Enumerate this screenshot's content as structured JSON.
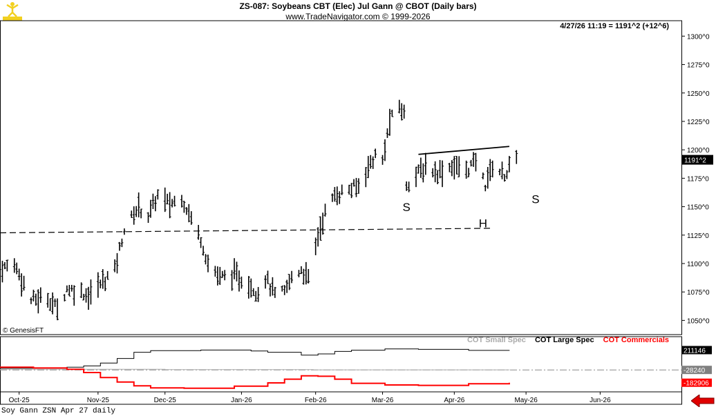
{
  "header": {
    "title": "ZS-087:  Soybeans CBT (Elec) Jul Gann @ CBOT  (Daily bars)",
    "subtitle": "www.TradeNavigator.com © 1999-2026",
    "quote": "4/27/26 11:19 = 1191^2 (+12^6)",
    "credit": "© GenesisFT"
  },
  "footer": {
    "text": "Soy Gann ZSN Apr 27 daily"
  },
  "icons": {
    "logo": "trader-figure-icon",
    "nav": "back-arrow-icon"
  },
  "colors": {
    "price": "#000000",
    "small_spec": "#aaaaaa",
    "large_spec": "#000000",
    "commercials": "#ff0000",
    "accent": "#e00000"
  },
  "legend": [
    {
      "label": "COT Small Spec",
      "color": "#aaaaaa"
    },
    {
      "label": "COT Large Spec",
      "color": "#000000"
    },
    {
      "label": "COT Commercials",
      "color": "#ff0000"
    }
  ],
  "annotations": [
    {
      "text": "S",
      "date": "2026-03-12",
      "price": 1146
    },
    {
      "text": "H",
      "date": "2026-04-13",
      "price": 1132
    },
    {
      "text": "S",
      "date": "2026-05-05",
      "price": 1153
    }
  ],
  "chart_data": [
    {
      "type": "ohlc",
      "title": "Soybeans CBT (Elec) Jul Gann @ CBOT (Daily bars)",
      "x_type": "date",
      "x_range": [
        "2025-09-23",
        "2026-07-05"
      ],
      "x_ticks": [
        {
          "date": "2025-10-01",
          "label": "Oct-25"
        },
        {
          "date": "2025-11-03",
          "label": "Nov-25"
        },
        {
          "date": "2025-12-01",
          "label": "Dec-25"
        },
        {
          "date": "2026-01-02",
          "label": "Jan-26"
        },
        {
          "date": "2026-02-02",
          "label": "Feb-26"
        },
        {
          "date": "2026-03-02",
          "label": "Mar-26"
        },
        {
          "date": "2026-04-01",
          "label": "Apr-26"
        },
        {
          "date": "2026-05-01",
          "label": "May-26"
        },
        {
          "date": "2026-06-01",
          "label": "Jun-26"
        }
      ],
      "ylim": [
        1037.5,
        1307.5
      ],
      "y_ticks": [
        "1050^0",
        "1075^0",
        "1100^0",
        "1125^0",
        "1150^0",
        "1175^0",
        "1200^0",
        "1225^0",
        "1250^0",
        "1275^0",
        "1300^0"
      ],
      "y_tick_values": [
        1050,
        1075,
        1100,
        1125,
        1150,
        1175,
        1200,
        1225,
        1250,
        1275,
        1300
      ],
      "last_label": "1191^2",
      "last_value": 1191.25,
      "grid": false,
      "key_points": [
        {
          "date": "2025-09-23",
          "price": 1095
        },
        {
          "date": "2025-09-29",
          "price": 1100
        },
        {
          "date": "2025-10-06",
          "price": 1068
        },
        {
          "date": "2025-10-13",
          "price": 1070
        },
        {
          "date": "2025-10-17",
          "price": 1060
        },
        {
          "date": "2025-10-21",
          "price": 1078
        },
        {
          "date": "2025-10-27",
          "price": 1075
        },
        {
          "date": "2025-10-30",
          "price": 1072
        },
        {
          "date": "2025-11-03",
          "price": 1080
        },
        {
          "date": "2025-11-10",
          "price": 1095
        },
        {
          "date": "2025-11-14",
          "price": 1130
        },
        {
          "date": "2025-11-20",
          "price": 1150
        },
        {
          "date": "2025-11-24",
          "price": 1142
        },
        {
          "date": "2025-11-28",
          "price": 1160
        },
        {
          "date": "2025-12-03",
          "price": 1152
        },
        {
          "date": "2025-12-08",
          "price": 1158
        },
        {
          "date": "2025-12-12",
          "price": 1140
        },
        {
          "date": "2025-12-16",
          "price": 1122
        },
        {
          "date": "2025-12-19",
          "price": 1100
        },
        {
          "date": "2025-12-24",
          "price": 1088
        },
        {
          "date": "2025-12-30",
          "price": 1090
        },
        {
          "date": "2026-01-05",
          "price": 1082
        },
        {
          "date": "2026-01-09",
          "price": 1074
        },
        {
          "date": "2026-01-12",
          "price": 1088
        },
        {
          "date": "2026-01-16",
          "price": 1072
        },
        {
          "date": "2026-01-20",
          "price": 1075
        },
        {
          "date": "2026-01-23",
          "price": 1088
        },
        {
          "date": "2026-01-27",
          "price": 1095
        },
        {
          "date": "2026-01-30",
          "price": 1086
        },
        {
          "date": "2026-02-03",
          "price": 1125
        },
        {
          "date": "2026-02-06",
          "price": 1145
        },
        {
          "date": "2026-02-10",
          "price": 1160
        },
        {
          "date": "2026-02-16",
          "price": 1165
        },
        {
          "date": "2026-02-20",
          "price": 1168
        },
        {
          "date": "2026-02-24",
          "price": 1185
        },
        {
          "date": "2026-02-27",
          "price": 1195
        },
        {
          "date": "2026-03-02",
          "price": 1190
        },
        {
          "date": "2026-03-05",
          "price": 1225
        },
        {
          "date": "2026-03-09",
          "price": 1238
        },
        {
          "date": "2026-03-11",
          "price": 1232
        },
        {
          "date": "2026-03-12",
          "price": 1170
        },
        {
          "date": "2026-03-16",
          "price": 1178
        },
        {
          "date": "2026-03-20",
          "price": 1185
        },
        {
          "date": "2026-03-25",
          "price": 1180
        },
        {
          "date": "2026-03-31",
          "price": 1186
        },
        {
          "date": "2026-04-06",
          "price": 1182
        },
        {
          "date": "2026-04-10",
          "price": 1190
        },
        {
          "date": "2026-04-14",
          "price": 1170
        },
        {
          "date": "2026-04-17",
          "price": 1186
        },
        {
          "date": "2026-04-22",
          "price": 1178
        },
        {
          "date": "2026-04-27",
          "price": 1191.25
        }
      ],
      "lines": [
        {
          "name": "neckline",
          "style": "dashed",
          "points": [
            {
              "date": "2025-09-23",
              "price": 1127
            },
            {
              "date": "2026-04-16",
              "price": 1131
            }
          ]
        },
        {
          "name": "resistance",
          "style": "solid",
          "points": [
            {
              "date": "2026-03-17",
              "price": 1196
            },
            {
              "date": "2026-04-24",
              "price": 1203
            }
          ]
        }
      ]
    },
    {
      "type": "line",
      "title": "COT",
      "x_type": "date",
      "value_labels": [
        {
          "text": "211146",
          "value": 211146
        },
        {
          "text": "-28240",
          "value": -28240
        },
        {
          "text": "-182906",
          "value": -182906
        }
      ],
      "series": [
        {
          "name": "COT Small Spec",
          "color": "#aaaaaa",
          "step": true,
          "points": [
            [
              "2025-09-23",
              -20000
            ],
            [
              "2025-12-01",
              -25000
            ],
            [
              "2026-02-01",
              -28000
            ],
            [
              "2026-04-24",
              -28240
            ]
          ]
        },
        {
          "name": "COT Large Spec",
          "color": "#000000",
          "step": true,
          "points": [
            [
              "2025-09-23",
              -8000
            ],
            [
              "2025-10-21",
              5000
            ],
            [
              "2025-10-28",
              20000
            ],
            [
              "2025-11-04",
              55000
            ],
            [
              "2025-11-11",
              110000
            ],
            [
              "2025-11-18",
              185000
            ],
            [
              "2025-11-25",
              205000
            ],
            [
              "2025-12-16",
              212000
            ],
            [
              "2026-01-06",
              200000
            ],
            [
              "2026-01-13",
              185000
            ],
            [
              "2026-01-27",
              150000
            ],
            [
              "2026-02-03",
              165000
            ],
            [
              "2026-02-10",
              195000
            ],
            [
              "2026-02-17",
              210000
            ],
            [
              "2026-03-03",
              225000
            ],
            [
              "2026-03-17",
              220000
            ],
            [
              "2026-04-07",
              208000
            ],
            [
              "2026-04-24",
              211146
            ]
          ]
        },
        {
          "name": "COT Commercials",
          "color": "#ff0000",
          "step": true,
          "points": [
            [
              "2025-09-23",
              5000
            ],
            [
              "2025-10-07",
              -5000
            ],
            [
              "2025-10-21",
              -20000
            ],
            [
              "2025-10-28",
              -60000
            ],
            [
              "2025-11-04",
              -120000
            ],
            [
              "2025-11-11",
              -175000
            ],
            [
              "2025-11-18",
              -220000
            ],
            [
              "2025-11-25",
              -245000
            ],
            [
              "2025-12-09",
              -250000
            ],
            [
              "2025-12-30",
              -225000
            ],
            [
              "2026-01-13",
              -185000
            ],
            [
              "2026-01-20",
              -140000
            ],
            [
              "2026-01-27",
              -100000
            ],
            [
              "2026-02-03",
              -105000
            ],
            [
              "2026-02-10",
              -140000
            ],
            [
              "2026-02-17",
              -190000
            ],
            [
              "2026-03-03",
              -210000
            ],
            [
              "2026-03-17",
              -215000
            ],
            [
              "2026-04-07",
              -195000
            ],
            [
              "2026-04-24",
              -182906
            ]
          ]
        }
      ]
    }
  ]
}
